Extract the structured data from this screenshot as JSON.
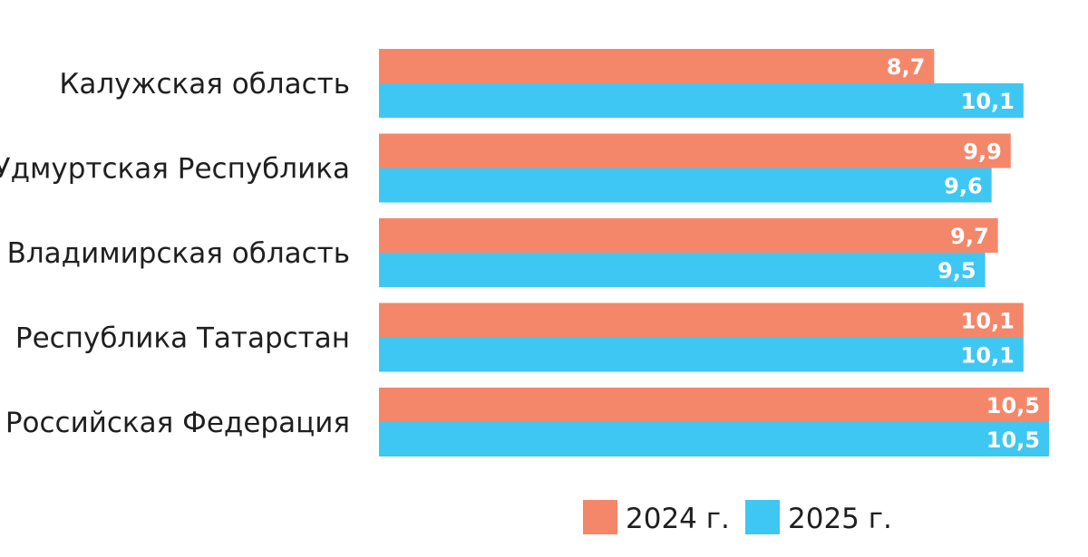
{
  "chart_data": {
    "type": "bar",
    "orientation": "horizontal",
    "categories": [
      "Калужская область",
      "Удмуртская Республика",
      "Владимирская область",
      "Республика Татарстан",
      "Российская Федерация"
    ],
    "series": [
      {
        "name": "2024 г.",
        "color": "#f4876a",
        "values": [
          8.7,
          9.9,
          9.7,
          10.1,
          10.5
        ],
        "labels": [
          "8,7",
          "9,9",
          "9,7",
          "10,1",
          "10,5"
        ]
      },
      {
        "name": "2025 г.",
        "color": "#3ec7f2",
        "values": [
          10.1,
          9.6,
          9.5,
          10.1,
          10.5
        ],
        "labels": [
          "10,1",
          "9,6",
          "9,5",
          "10,1",
          "10,5"
        ]
      }
    ],
    "xlim": [
      0,
      10.5
    ],
    "grid": false,
    "legend": "bottom-right"
  }
}
